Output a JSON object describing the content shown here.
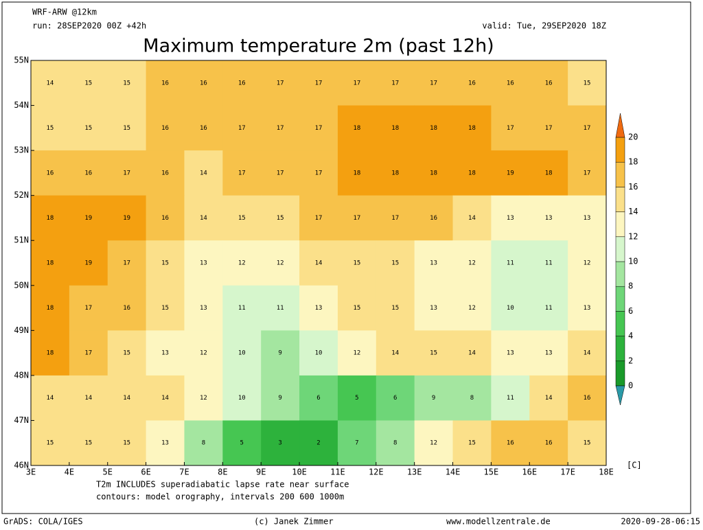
{
  "header": {
    "model": "WRF-ARW @12km",
    "run": "run: 28SEP2020 00Z +42h",
    "valid": "valid: Tue, 29SEP2020 18Z",
    "title": "Maximum temperature 2m (past 12h)"
  },
  "map": {
    "xlim": [
      3,
      18
    ],
    "ylim": [
      46,
      55
    ],
    "xticks": [
      {
        "value": 3,
        "label": "3E"
      },
      {
        "value": 4,
        "label": "4E"
      },
      {
        "value": 5,
        "label": "5E"
      },
      {
        "value": 6,
        "label": "6E"
      },
      {
        "value": 7,
        "label": "7E"
      },
      {
        "value": 8,
        "label": "8E"
      },
      {
        "value": 9,
        "label": "9E"
      },
      {
        "value": 10,
        "label": "10E"
      },
      {
        "value": 11,
        "label": "11E"
      },
      {
        "value": 12,
        "label": "12E"
      },
      {
        "value": 13,
        "label": "13E"
      },
      {
        "value": 14,
        "label": "14E"
      },
      {
        "value": 15,
        "label": "15E"
      },
      {
        "value": 16,
        "label": "16E"
      },
      {
        "value": 17,
        "label": "17E"
      },
      {
        "value": 18,
        "label": "18E"
      }
    ],
    "yticks": [
      {
        "value": 46,
        "label": "46N"
      },
      {
        "value": 47,
        "label": "47N"
      },
      {
        "value": 48,
        "label": "48N"
      },
      {
        "value": 49,
        "label": "49N"
      },
      {
        "value": 50,
        "label": "50N"
      },
      {
        "value": 51,
        "label": "51N"
      },
      {
        "value": 52,
        "label": "52N"
      },
      {
        "value": 53,
        "label": "53N"
      },
      {
        "value": 54,
        "label": "54N"
      },
      {
        "value": 55,
        "label": "55N"
      }
    ],
    "grid": [
      [
        14,
        15,
        15,
        16,
        16,
        16,
        17,
        17,
        17,
        17,
        17,
        16,
        16,
        16,
        15
      ],
      [
        15,
        15,
        15,
        16,
        16,
        17,
        17,
        17,
        18,
        18,
        18,
        18,
        17,
        17,
        17
      ],
      [
        16,
        16,
        17,
        16,
        14,
        17,
        17,
        17,
        18,
        18,
        18,
        18,
        19,
        18,
        17
      ],
      [
        18,
        19,
        19,
        16,
        14,
        15,
        15,
        17,
        17,
        17,
        16,
        14,
        13,
        13,
        13
      ],
      [
        18,
        19,
        17,
        15,
        13,
        12,
        12,
        14,
        15,
        15,
        13,
        12,
        11,
        11,
        12
      ],
      [
        18,
        17,
        16,
        15,
        13,
        11,
        11,
        13,
        15,
        15,
        13,
        12,
        10,
        11,
        13
      ],
      [
        18,
        17,
        15,
        13,
        12,
        10,
        9,
        10,
        12,
        14,
        15,
        14,
        13,
        13,
        14
      ],
      [
        14,
        14,
        14,
        14,
        12,
        10,
        9,
        6,
        5,
        6,
        9,
        8,
        11,
        14,
        16
      ],
      [
        15,
        15,
        15,
        13,
        8,
        5,
        3,
        2,
        7,
        8,
        12,
        15,
        16,
        16,
        15
      ]
    ]
  },
  "colorbar": {
    "ticks": [
      0,
      2,
      4,
      6,
      8,
      10,
      12,
      14,
      16,
      18,
      20
    ],
    "unit": "[C]",
    "colors": [
      "#2a9aa8",
      "#1a9a2a",
      "#2db23c",
      "#46c652",
      "#6ed678",
      "#a4e6a0",
      "#d6f6cc",
      "#fdf6c0",
      "#fbe08a",
      "#f7c24a",
      "#f4a010",
      "#ef6a10"
    ]
  },
  "notes": [
    "T2m INCLUDES superadiabatic lapse rate near surface",
    "contours: model orography, intervals 200 600 1000m"
  ],
  "footer": {
    "left": "GrADS: COLA/IGES",
    "center": "(c) Janek Zimmer",
    "site": "www.modellzentrale.de",
    "stamp": "2020-09-28-06:15"
  }
}
